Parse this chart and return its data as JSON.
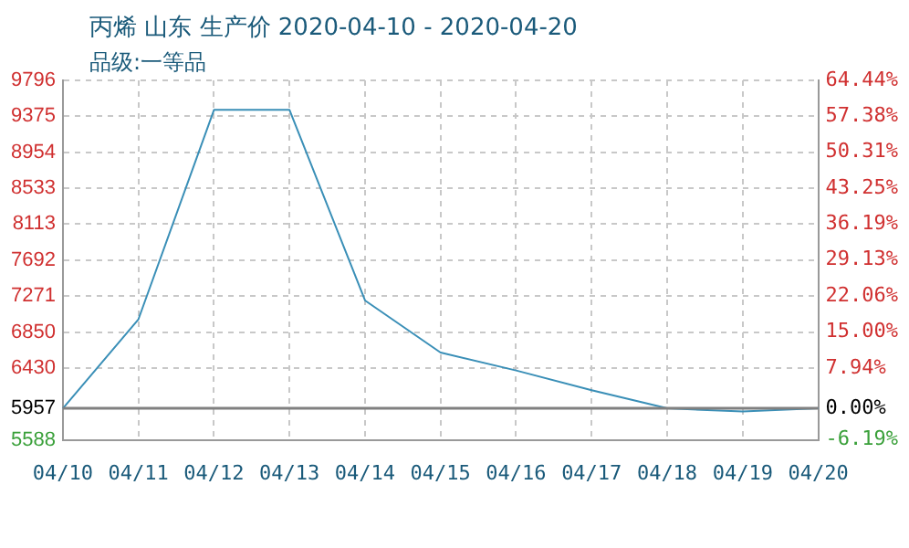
{
  "chart_data": {
    "type": "line",
    "title": "丙烯 山东 生产价 2020-04-10 - 2020-04-20",
    "subtitle": "品级:一等品",
    "categories": [
      "04/10",
      "04/11",
      "04/12",
      "04/13",
      "04/14",
      "04/15",
      "04/16",
      "04/17",
      "04/18",
      "04/19",
      "04/20"
    ],
    "series": [
      {
        "color": "#3a8fb7",
        "values": [
          5957,
          7000,
          9450,
          9450,
          7220,
          6610,
          6400,
          6170,
          5957,
          5920,
          5957
        ]
      }
    ],
    "ylim": [
      5588,
      9796
    ],
    "yticks": [
      5588,
      5957,
      6430,
      6850,
      7271,
      7692,
      8113,
      8533,
      8954,
      9375,
      9796
    ],
    "y2lim": [
      -6.19,
      64.44
    ],
    "y2ticks": [
      {
        "value": -6.19,
        "label": "-6.19%"
      },
      {
        "value": 0,
        "label": "0.00%"
      },
      {
        "value": 7.94,
        "label": "7.94%"
      },
      {
        "value": 15,
        "label": "15.00%"
      },
      {
        "value": 22.06,
        "label": "22.06%"
      },
      {
        "value": 29.13,
        "label": "29.13%"
      },
      {
        "value": 36.19,
        "label": "36.19%"
      },
      {
        "value": 43.25,
        "label": "43.25%"
      },
      {
        "value": 50.31,
        "label": "50.31%"
      },
      {
        "value": 57.38,
        "label": "57.38%"
      },
      {
        "value": 64.44,
        "label": "64.44%"
      }
    ],
    "ref_lines": [
      {
        "axis": "y2",
        "value": 0,
        "color": "#808080"
      }
    ],
    "grid": true,
    "legend": false,
    "marker": "none",
    "line_style": "solid"
  }
}
